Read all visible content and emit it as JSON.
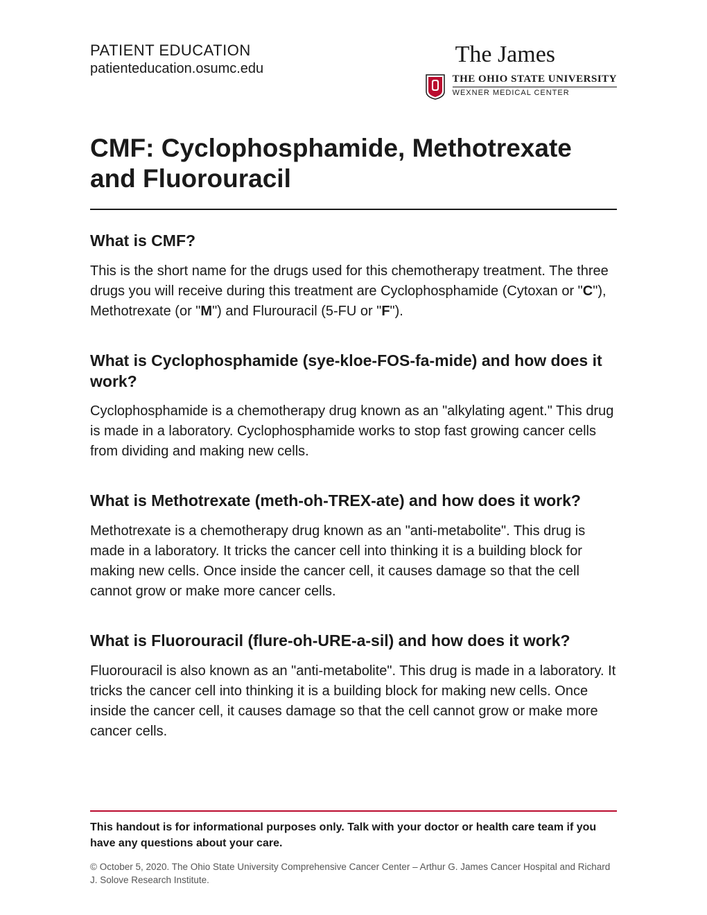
{
  "header": {
    "patient_edu": "PATIENT EDUCATION",
    "patient_url": "patienteducation.osumc.edu",
    "james_title": "The James",
    "osu_name": "THE OHIO STATE UNIVERSITY",
    "osu_sub": "WEXNER MEDICAL CENTER"
  },
  "title": "CMF: Cyclophosphamide, Methotrexate and Fluorouracil",
  "sections": [
    {
      "heading": "What is CMF?",
      "body_html": "This is the short name for the drugs used for this chemotherapy treatment. The three drugs you will receive during this treatment are Cyclophosphamide (Cytoxan or \"<b>C</b>\"), Methotrexate (or \"<b>M</b>\") and Flurouracil (5-FU or \"<b>F</b>\")."
    },
    {
      "heading": "What is Cyclophosphamide (sye-kloe-FOS-fa-mide) and how does it work?",
      "body_html": "Cyclophosphamide is a chemotherapy drug known as an \"alkylating agent.\" This drug is made in a laboratory. Cyclophosphamide works to stop fast growing cancer cells from dividing and making new cells."
    },
    {
      "heading": "What is Methotrexate (meth-oh-TREX-ate) and how does it work?",
      "body_html": "Methotrexate is a chemotherapy drug known as an \"anti-metabolite\". This drug is made in a laboratory. It tricks the cancer cell into thinking it is a building block for making new cells. Once inside the cancer cell, it causes damage so that the cell cannot grow or make more cancer cells."
    },
    {
      "heading": "What is Fluorouracil (flure-oh-URE-a-sil) and how does it work?",
      "body_html": "Fluorouracil is also known as an \"anti-metabolite\". This drug is made in a laboratory. It tricks the cancer cell into thinking it is a building block for making new cells. Once inside the cancer cell, it causes damage so that the cell cannot grow or make more cancer cells."
    }
  ],
  "footer": {
    "disclaimer": "This handout is for informational purposes only. Talk with your doctor or health care team if you have any questions about your care.",
    "copyright": "© October 5, 2020. The Ohio State University Comprehensive Cancer Center – Arthur G. James Cancer Hospital and Richard J. Solove Research Institute."
  },
  "colors": {
    "text": "#1a1a1a",
    "accent_red": "#ba0c2f",
    "copyright_gray": "#555"
  }
}
